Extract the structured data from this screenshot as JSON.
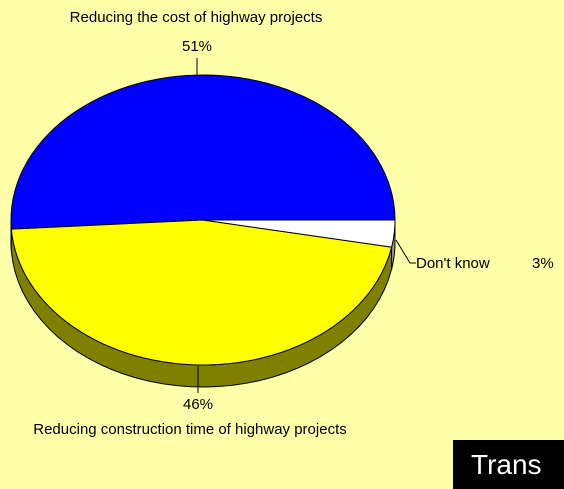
{
  "chart_data": {
    "type": "pie",
    "categories": [
      "Reducing the cost of highway projects",
      "Reducing construction time of highway projects",
      "Don't know"
    ],
    "values": [
      51,
      46,
      3
    ],
    "value_labels": [
      "51%",
      "46%",
      "3%"
    ],
    "colors": [
      "#0000ff",
      "#ffff00",
      "#ffffff"
    ],
    "side_colors": [
      "#00007f",
      "#808000",
      "#9a9a9a"
    ],
    "background": "#ffffaa",
    "annotations": [
      "Trans"
    ]
  }
}
